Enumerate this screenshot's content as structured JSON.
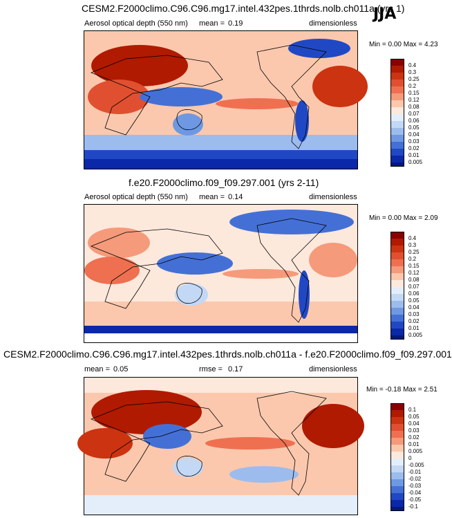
{
  "season": "JJA",
  "panels": [
    {
      "title": "CESM2.F2000climo.C96.C96.mg17.intel.432pes.1thrds.nolb.ch011a (yrs 1)",
      "variable": "Aerosol optical depth (550 nm)",
      "stat1_label": "mean =",
      "stat1_value": "0.19",
      "stat2_label": "",
      "stat2_value": "",
      "units": "dimensionless",
      "minmax": "Min =  0.00 Max =  4.23",
      "levels": [
        "0.4",
        "0.3",
        "0.25",
        "0.2",
        "0.15",
        "0.12",
        "0.08",
        "0.07",
        "0.06",
        "0.05",
        "0.04",
        "0.03",
        "0.02",
        "0.01",
        "0.005"
      ]
    },
    {
      "title": "f.e20.F2000climo.f09_f09.297.001 (yrs 2-11)",
      "variable": "Aerosol optical depth (550 nm)",
      "stat1_label": "mean =",
      "stat1_value": "0.14",
      "stat2_label": "",
      "stat2_value": "",
      "units": "dimensionless",
      "minmax": "Min =  0.00 Max =  2.09",
      "levels": [
        "0.4",
        "0.3",
        "0.25",
        "0.2",
        "0.15",
        "0.12",
        "0.08",
        "0.07",
        "0.06",
        "0.05",
        "0.04",
        "0.03",
        "0.02",
        "0.01",
        "0.005"
      ]
    },
    {
      "title": "CESM2.F2000climo.C96.C96.mg17.intel.432pes.1thrds.nolb.ch011a - f.e20.F2000climo.f09_f09.297.001",
      "variable": "",
      "stat1_label": "mean =",
      "stat1_value": "0.05",
      "stat2_label": "rmse =",
      "stat2_value": "0.17",
      "units": "dimensionless",
      "minmax": "Min = -0.18 Max =  2.51",
      "levels": [
        "0.1",
        "0.05",
        "0.04",
        "0.03",
        "0.02",
        "0.01",
        "0.005",
        "0",
        "-0.005",
        "-0.01",
        "-0.02",
        "-0.03",
        "-0.04",
        "-0.05",
        "-0.1"
      ]
    }
  ],
  "colors": {
    "abs": [
      "#8a0000",
      "#b01a00",
      "#cc3310",
      "#e05030",
      "#ee7050",
      "#f59a7a",
      "#fbc8ad",
      "#fde8dc",
      "#e4eefb",
      "#c2d8f5",
      "#9cbcee",
      "#6e98e2",
      "#4470d6",
      "#2148c4",
      "#0a28a8",
      "#001a7a"
    ],
    "diff": [
      "#8a0000",
      "#b01a00",
      "#cc3310",
      "#e05030",
      "#ee7050",
      "#f59a7a",
      "#fbc8ad",
      "#fde8dc",
      "#e4eefb",
      "#c2d8f5",
      "#9cbcee",
      "#6e98e2",
      "#4470d6",
      "#2148c4",
      "#0a28a8",
      "#001a7a"
    ]
  },
  "chart_data": [
    {
      "type": "heatmap",
      "title": "CESM2.F2000climo.C96.C96.mg17.intel.432pes.1thrds.nolb.ch011a (yrs 1)",
      "variable": "Aerosol optical depth (550 nm)",
      "season": "JJA",
      "mean": 0.19,
      "min": 0.0,
      "max": 4.23,
      "units": "dimensionless",
      "contour_levels": [
        0.005,
        0.01,
        0.02,
        0.03,
        0.04,
        0.05,
        0.06,
        0.07,
        0.08,
        0.12,
        0.15,
        0.2,
        0.25,
        0.3,
        0.4
      ]
    },
    {
      "type": "heatmap",
      "title": "f.e20.F2000climo.f09_f09.297.001 (yrs 2-11)",
      "variable": "Aerosol optical depth (550 nm)",
      "season": "JJA",
      "mean": 0.14,
      "min": 0.0,
      "max": 2.09,
      "units": "dimensionless",
      "contour_levels": [
        0.005,
        0.01,
        0.02,
        0.03,
        0.04,
        0.05,
        0.06,
        0.07,
        0.08,
        0.12,
        0.15,
        0.2,
        0.25,
        0.3,
        0.4
      ]
    },
    {
      "type": "heatmap",
      "title": "CESM2.F2000climo.C96.C96.mg17.intel.432pes.1thrds.nolb.ch011a - f.e20.F2000climo.f09_f09.297.001",
      "season": "JJA",
      "mean": 0.05,
      "rmse": 0.17,
      "min": -0.18,
      "max": 2.51,
      "units": "dimensionless",
      "contour_levels": [
        -0.1,
        -0.05,
        -0.04,
        -0.03,
        -0.02,
        -0.01,
        -0.005,
        0,
        0.005,
        0.01,
        0.02,
        0.03,
        0.04,
        0.05,
        0.1
      ]
    }
  ]
}
